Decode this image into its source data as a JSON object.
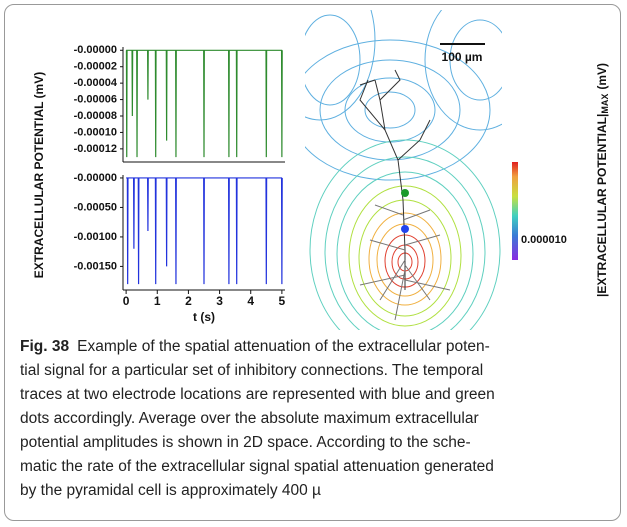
{
  "chart_data": [
    {
      "type": "line",
      "ylabel": "EXTRACELLULAR POTENTIAL (mV)",
      "x": [
        0,
        0.01,
        0.02,
        0.03,
        0.19,
        0.2,
        0.21,
        0.34,
        0.35,
        0.36,
        0.69,
        0.7,
        0.71,
        0.94,
        0.95,
        0.96,
        1.29,
        1.3,
        1.31,
        1.59,
        1.6,
        1.61,
        2.49,
        2.5,
        2.51,
        3.29,
        3.3,
        3.31,
        3.54,
        3.55,
        3.56,
        4.49,
        4.5,
        4.51,
        4.99,
        5.0,
        5.01
      ],
      "series": [
        {
          "color": "#2e8b2e",
          "values": [
            0,
            0,
            -0.00013,
            0,
            0,
            -8e-05,
            0,
            0,
            -0.00013,
            0,
            0,
            -6e-05,
            0,
            0,
            -0.00013,
            0,
            0,
            -0.00011,
            0,
            0,
            -0.00013,
            0,
            0,
            -0.00013,
            0,
            0,
            -0.00013,
            0,
            0,
            -0.00013,
            0,
            0,
            -0.00013,
            0,
            0,
            -0.00013,
            0
          ]
        }
      ],
      "xlim": [
        -0.1,
        5.1
      ],
      "ylim": [
        -0.000136,
        4e-06
      ],
      "yticks": [
        {
          "value": 0,
          "label": "-0.00000"
        },
        {
          "value": -2e-05,
          "label": "-0.00002"
        },
        {
          "value": -4e-05,
          "label": "-0.00004"
        },
        {
          "value": -6e-05,
          "label": "-0.00006"
        },
        {
          "value": -8e-05,
          "label": "-0.00008"
        },
        {
          "value": -0.0001,
          "label": "-0.00010"
        },
        {
          "value": -0.00012,
          "label": "-0.00012"
        }
      ]
    },
    {
      "type": "line",
      "xlabel": "t (s)",
      "x": [
        0,
        0.04,
        0.05,
        0.06,
        0.24,
        0.25,
        0.26,
        0.39,
        0.4,
        0.41,
        0.69,
        0.7,
        0.71,
        0.94,
        0.95,
        0.96,
        1.29,
        1.3,
        1.31,
        1.59,
        1.6,
        1.61,
        2.49,
        2.5,
        2.51,
        3.29,
        3.3,
        3.31,
        3.54,
        3.55,
        3.56,
        4.49,
        4.5,
        4.51,
        4.99,
        5.0,
        5.01
      ],
      "series": [
        {
          "color": "#2233dd",
          "values": [
            0,
            0,
            -0.0018,
            0,
            0,
            -0.0012,
            0,
            0,
            -0.0018,
            0,
            0,
            -0.0009,
            0,
            0,
            -0.0018,
            0,
            0,
            -0.0015,
            0,
            0,
            -0.0018,
            0,
            0,
            -0.0018,
            0,
            0,
            -0.0018,
            0,
            0,
            -0.0018,
            0,
            0,
            -0.0018,
            0,
            0,
            -0.0018,
            0
          ]
        }
      ],
      "xlim": [
        -0.1,
        5.1
      ],
      "ylim": [
        -0.0019,
        5e-05
      ],
      "xticks": [
        0,
        1,
        2,
        3,
        4,
        5
      ],
      "yticks": [
        {
          "value": 0,
          "label": "-0.00000"
        },
        {
          "value": -0.0005,
          "label": "-0.00050"
        },
        {
          "value": -0.001,
          "label": "-0.00100"
        },
        {
          "value": -0.0015,
          "label": "-0.00150"
        }
      ]
    }
  ],
  "contour_panel": {
    "scale_label": "100 µm",
    "colorbar_tick": "0.000010",
    "colorbar_label": "|EXTRACELLULAR POTENTIAL|",
    "colorbar_label_sub": "MAX",
    "colorbar_label_unit": "(mV)"
  },
  "caption": {
    "label": "Fig. 38",
    "lines": [
      "Example of the spatial attenuation of the extracellular poten-",
      "tial signal for a particular set of inhibitory connections. The temporal",
      "traces at two electrode locations are represented with blue and green",
      "dots accordingly. Average over the absolute maximum extracellular",
      "potential amplitudes is shown in 2D space. According to the sche-",
      "matic the rate of the extracellular signal spatial attenuation generated",
      "by the pyramidal cell is approximately 400 µ"
    ]
  }
}
